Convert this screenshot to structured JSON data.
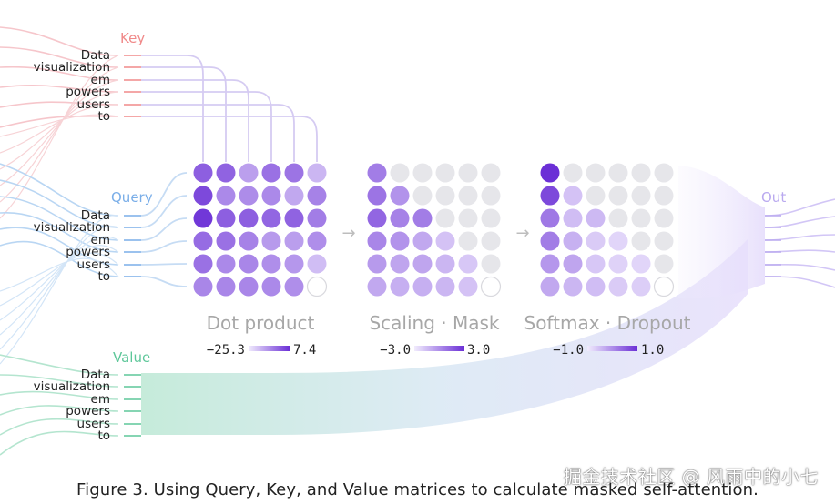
{
  "tokens": [
    "Data",
    "visualization",
    "em",
    "powers",
    "users",
    "to"
  ],
  "groups": {
    "key": {
      "label": "Key",
      "color": "#f08a8a",
      "flow": "#f6c6cb"
    },
    "query": {
      "label": "Query",
      "color": "#7aaee8",
      "flow": "#b9d6f3"
    },
    "value": {
      "label": "Value",
      "color": "#5ec79a",
      "flow": "#b4e5cf"
    },
    "out": {
      "label": "Out",
      "color": "#b9a9ef",
      "flow": "#d2c6f6"
    }
  },
  "stages": [
    {
      "label": "Dot product",
      "scale_min": "−25.3",
      "scale_max": "7.4",
      "matrix": [
        [
          0.72,
          0.7,
          0.35,
          0.62,
          0.6,
          0.22
        ],
        [
          0.85,
          0.48,
          0.46,
          0.48,
          0.3,
          0.52
        ],
        [
          0.95,
          0.72,
          0.72,
          0.68,
          0.7,
          0.55
        ],
        [
          0.65,
          0.62,
          0.52,
          0.38,
          0.36,
          0.45
        ],
        [
          0.62,
          0.48,
          0.5,
          0.45,
          0.4,
          0.18
        ],
        [
          0.5,
          0.5,
          0.5,
          0.48,
          0.45,
          0.0
        ]
      ]
    },
    {
      "label": "Scaling · Mask",
      "scale_min": "−3.0",
      "scale_max": "3.0",
      "matrix": [
        [
          0.55,
          -1,
          -1,
          -1,
          -1,
          -1
        ],
        [
          0.6,
          0.42,
          -1,
          -1,
          -1,
          -1
        ],
        [
          0.68,
          0.52,
          0.55,
          -1,
          -1,
          -1
        ],
        [
          0.5,
          0.42,
          0.3,
          0.15,
          -1,
          -1
        ],
        [
          0.38,
          0.32,
          0.32,
          0.22,
          0.12,
          -1
        ],
        [
          0.3,
          0.26,
          0.26,
          0.22,
          0.15,
          0.0
        ]
      ]
    },
    {
      "label": "Softmax · Dropout",
      "scale_min": "−1.0",
      "scale_max": "1.0",
      "matrix": [
        [
          1.0,
          -1,
          -1,
          -1,
          -1,
          -1
        ],
        [
          0.85,
          0.15,
          -1,
          -1,
          -1,
          -1
        ],
        [
          0.58,
          0.18,
          0.2,
          -1,
          -1,
          -1
        ],
        [
          0.55,
          0.25,
          0.1,
          0.04,
          -1,
          -1
        ],
        [
          0.4,
          0.32,
          0.12,
          0.06,
          0.04,
          -1
        ],
        [
          0.3,
          0.22,
          0.18,
          0.1,
          0.08,
          0.0
        ]
      ]
    }
  ],
  "arrow_glyph": "→",
  "caption": "Figure 3. Using Query, Key, and Value matrices to calculate masked self-attention.",
  "watermark": "掘金技术社区 @ 风雨中的小七",
  "colors": {
    "purple_strong": "#6b2fd6",
    "purple_light": "#e6dcfa",
    "masked_gray": "#e6e6ea",
    "token_tick": "#bbbbbb"
  }
}
